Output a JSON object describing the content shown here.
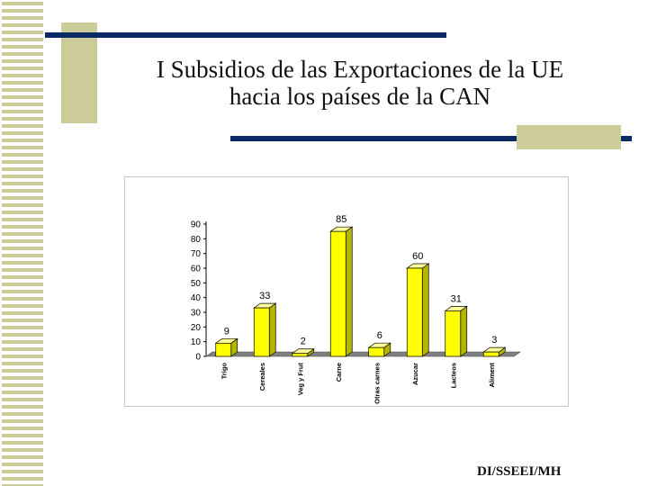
{
  "slide": {
    "title_line1": "I Subsidios de las Exportaciones de la UE",
    "title_line2": "hacia los países de la CAN",
    "footer": "DI/SSEEI/MH"
  },
  "colors": {
    "bar": "#ffff00",
    "bar_side": "#b5b500",
    "bar_top": "#ffff99",
    "floor": "#808080",
    "stripe": "#cccc99",
    "accent_bar": "#0a2a66"
  },
  "chart_data": {
    "type": "bar",
    "categories": [
      "Trigo",
      "Cereales",
      "Veg y Frut",
      "Carne",
      "Otras carnes",
      "Azucar",
      "Lacteos",
      "Aliment"
    ],
    "values": [
      9,
      33,
      2,
      85,
      6,
      60,
      31,
      3
    ],
    "ylim": [
      0,
      90
    ],
    "yticks": [
      0,
      10,
      20,
      30,
      40,
      50,
      60,
      70,
      80,
      90
    ],
    "title": "",
    "xlabel": "",
    "ylabel": "",
    "grid": false,
    "legend": "none",
    "style": "3d-column"
  }
}
